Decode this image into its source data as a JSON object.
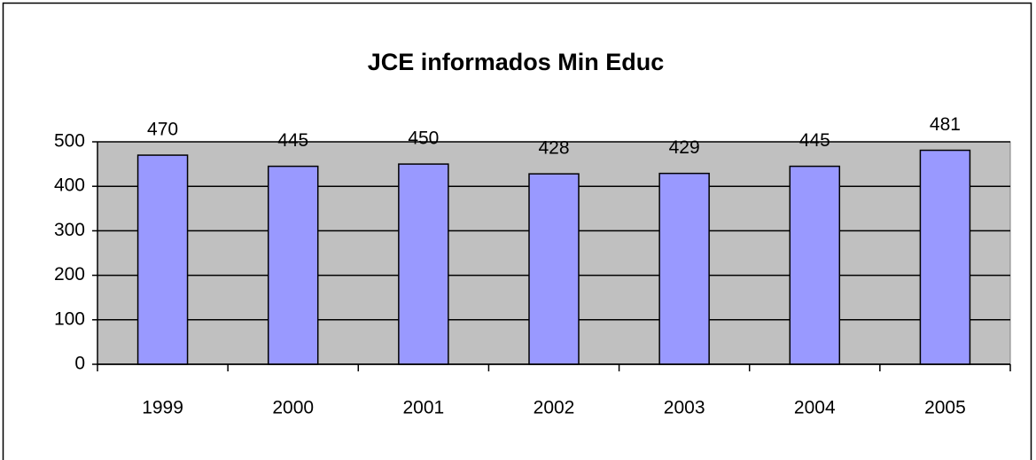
{
  "chart_data": {
    "type": "bar",
    "title": "JCE informados Min Educ",
    "categories": [
      "1999",
      "2000",
      "2001",
      "2002",
      "2003",
      "2004",
      "2005"
    ],
    "values": [
      470,
      445,
      450,
      428,
      429,
      445,
      481
    ],
    "color": "#9999ff",
    "plot_background": "#c0c0c0",
    "ylim": [
      0,
      500
    ],
    "yticks": [
      0,
      100,
      200,
      300,
      400,
      500
    ],
    "grid": true
  }
}
